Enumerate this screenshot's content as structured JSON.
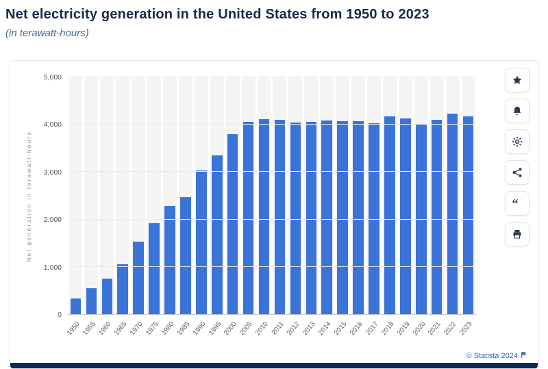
{
  "header": {
    "title": "Net electricity generation in the United States from 1950 to 2023",
    "subtitle": "(in terawatt-hours)"
  },
  "chart_data": {
    "type": "bar",
    "title": "Net electricity generation in the United States from 1950 to 2023",
    "subtitle": "(in terawatt-hours)",
    "categories": [
      "1950",
      "1955",
      "1960",
      "1965",
      "1970",
      "1975",
      "1980",
      "1985",
      "1990",
      "1995",
      "2000",
      "2005",
      "2010",
      "2011",
      "2012",
      "2013",
      "2014",
      "2015",
      "2016",
      "2017",
      "2018",
      "2019",
      "2020",
      "2021",
      "2022",
      "2023"
    ],
    "values": [
      334,
      550,
      756,
      1058,
      1535,
      1921,
      2290,
      2473,
      3038,
      3353,
      3802,
      4055,
      4125,
      4100,
      4048,
      4066,
      4094,
      4078,
      4077,
      4034,
      4178,
      4127,
      4007,
      4108,
      4231,
      4178
    ],
    "xlabel": "",
    "ylabel": "Net generation in terawatt-hours",
    "ylim": [
      0,
      5000
    ],
    "ytick_labels": [
      "0",
      "1,000",
      "2,000",
      "3,000",
      "4,000",
      "5,000"
    ],
    "grid": true,
    "legend": false,
    "bar_color": "#3b74d8",
    "band_color": "#f4f4f4"
  },
  "toolbar": {
    "items": [
      {
        "label": "Add to favorites",
        "icon": "star-icon"
      },
      {
        "label": "Notifications",
        "icon": "bell-icon"
      },
      {
        "label": "Settings",
        "icon": "gear-icon"
      },
      {
        "label": "Share",
        "icon": "share-icon"
      },
      {
        "label": "Citation",
        "icon": "quote-icon"
      },
      {
        "label": "Print",
        "icon": "print-icon"
      }
    ]
  },
  "footer": {
    "copyright": "© Statista 2024"
  }
}
